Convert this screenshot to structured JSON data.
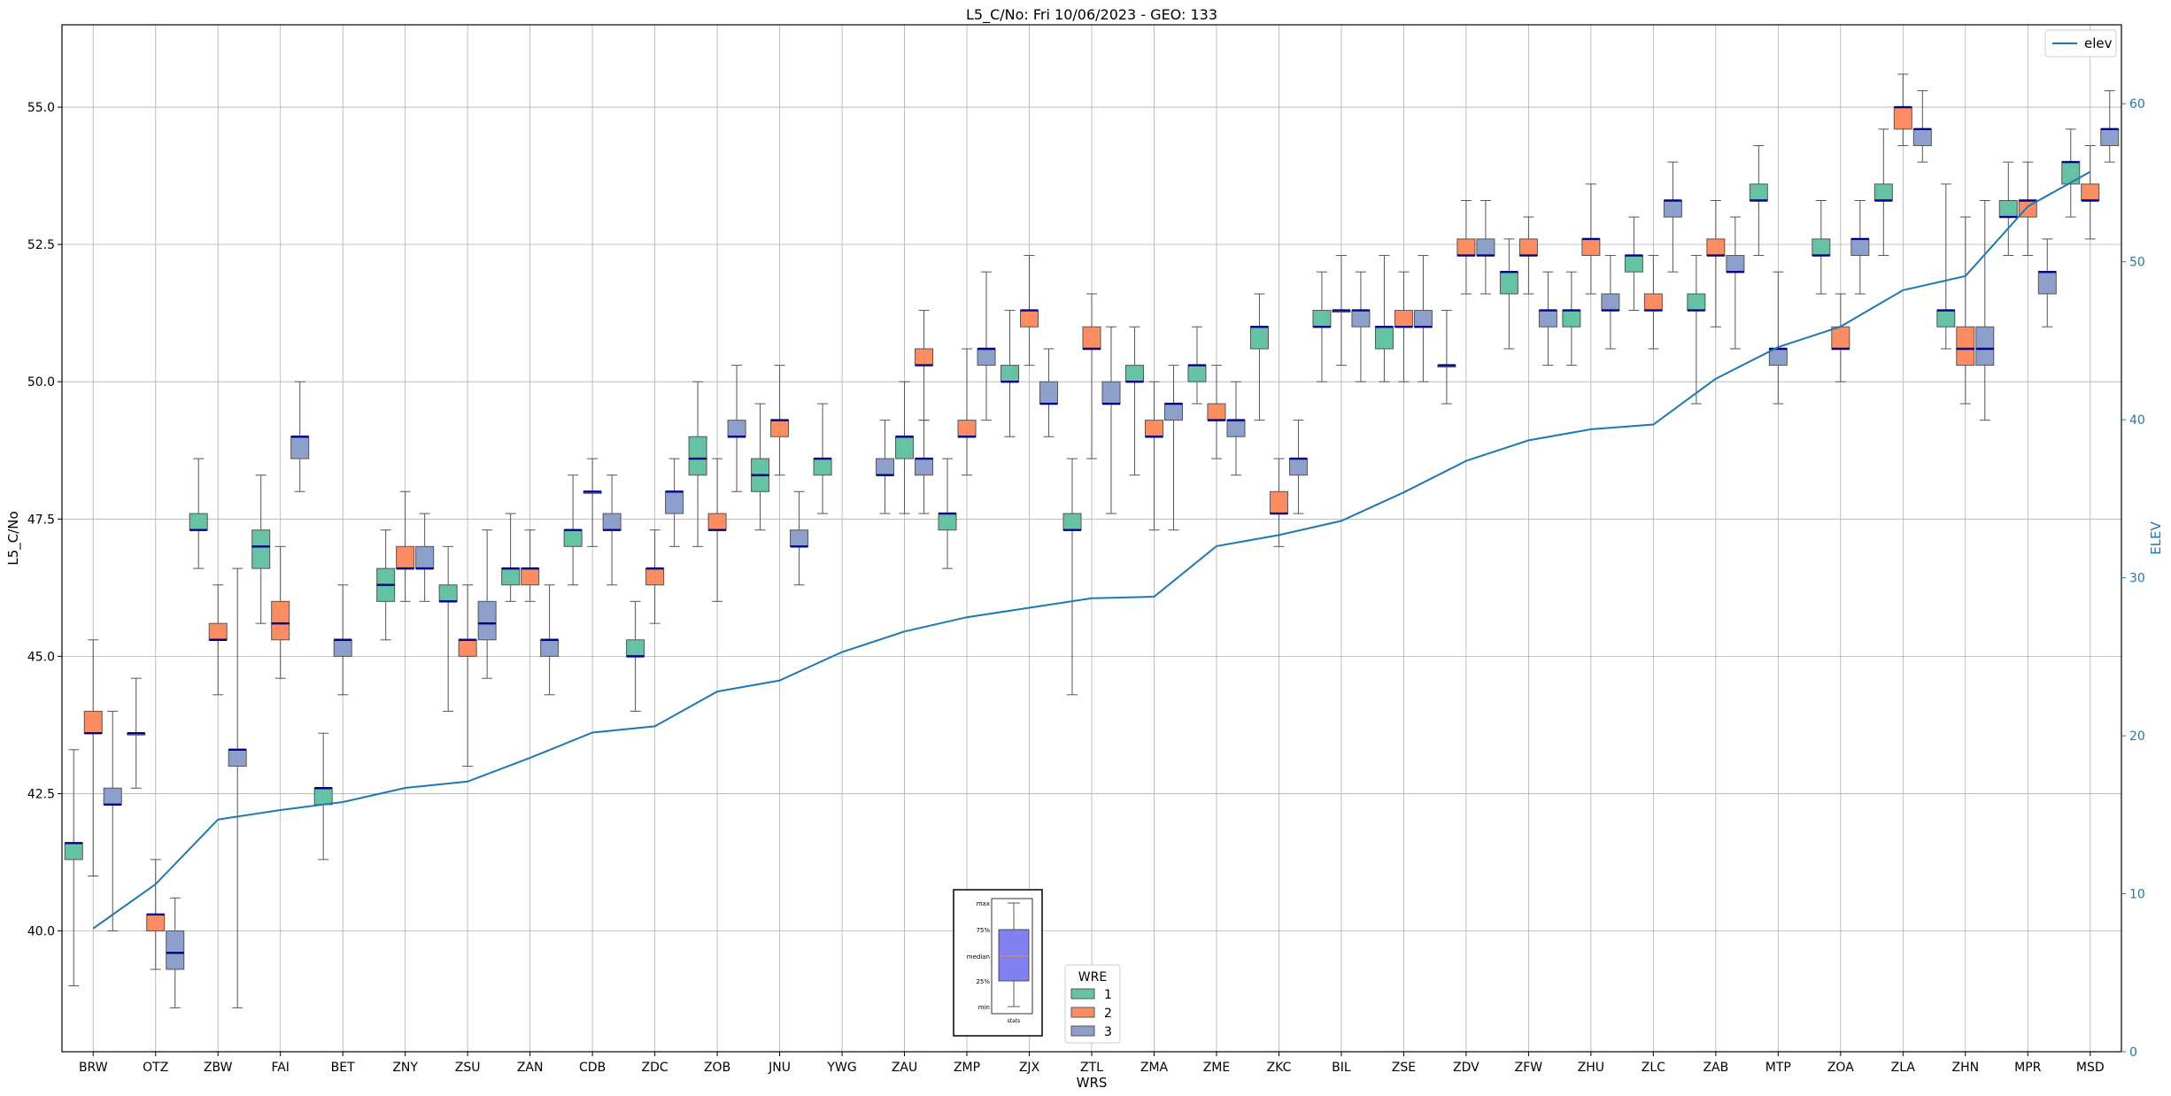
{
  "chart_data": {
    "type": "box",
    "title": "L5_C/No: Fri 10/06/2023 - GEO: 133",
    "xlabel": "WRS",
    "ylabel": "L5_C/No",
    "y2label": "ELEV",
    "ylim": [
      37.8,
      56.5
    ],
    "y2lim": [
      0,
      65
    ],
    "yticks": [
      "40.0",
      "42.5",
      "45.0",
      "47.5",
      "50.0",
      "52.5",
      "55.0"
    ],
    "y2ticks": [
      "0",
      "10",
      "20",
      "30",
      "40",
      "50",
      "60"
    ],
    "grid": true,
    "categories": [
      "BRW",
      "OTZ",
      "ZBW",
      "FAI",
      "BET",
      "ZNY",
      "ZSU",
      "ZAN",
      "CDB",
      "ZDC",
      "ZOB",
      "JNU",
      "YWG",
      "ZAU",
      "ZMP",
      "ZJX",
      "ZTL",
      "ZMA",
      "ZME",
      "ZKC",
      "BIL",
      "ZSE",
      "ZDV",
      "ZFW",
      "ZHU",
      "ZLC",
      "ZAB",
      "MTP",
      "ZOA",
      "ZLA",
      "ZHN",
      "MPR",
      "MSD"
    ],
    "wre_legend": {
      "title": "WRE",
      "labels": [
        "1",
        "2",
        "3"
      ],
      "colors": [
        "#66c2a5",
        "#fc8d62",
        "#8da0cb"
      ]
    },
    "median_color": "#00008b",
    "elev_series": {
      "name": "elev",
      "color": "#1f77b4",
      "legend_position": "top-right",
      "values": [
        7.8,
        10.6,
        14.7,
        15.3,
        15.8,
        16.7,
        17.1,
        18.6,
        20.2,
        20.6,
        22.8,
        23.5,
        25.3,
        26.6,
        27.5,
        28.1,
        28.7,
        28.8,
        32.0,
        32.7,
        33.6,
        35.4,
        37.4,
        38.7,
        39.4,
        39.7,
        42.6,
        44.6,
        45.9,
        48.2,
        49.1,
        53.5,
        55.7
      ]
    },
    "boxes": [
      {
        "station": "BRW",
        "wre": 1,
        "min": 39.0,
        "q1": 41.3,
        "median": 41.6,
        "q3": 41.6,
        "max": 43.3
      },
      {
        "station": "BRW",
        "wre": 2,
        "min": 41.0,
        "q1": 43.6,
        "median": 43.6,
        "q3": 44.0,
        "max": 45.3
      },
      {
        "station": "BRW",
        "wre": 3,
        "min": 40.0,
        "q1": 42.3,
        "median": 42.3,
        "q3": 42.6,
        "max": 44.0
      },
      {
        "station": "OTZ",
        "wre": 1,
        "min": 42.6,
        "q1": 43.6,
        "median": 43.6,
        "q3": 43.6,
        "max": 44.6
      },
      {
        "station": "OTZ",
        "wre": 2,
        "min": 39.3,
        "q1": 40.0,
        "median": 40.3,
        "q3": 40.3,
        "max": 41.3
      },
      {
        "station": "OTZ",
        "wre": 3,
        "min": 38.6,
        "q1": 39.3,
        "median": 39.6,
        "q3": 40.0,
        "max": 40.6
      },
      {
        "station": "ZBW",
        "wre": 1,
        "min": 46.6,
        "q1": 47.3,
        "median": 47.3,
        "q3": 47.6,
        "max": 48.6
      },
      {
        "station": "ZBW",
        "wre": 2,
        "min": 44.3,
        "q1": 45.3,
        "median": 45.3,
        "q3": 45.6,
        "max": 46.3
      },
      {
        "station": "ZBW",
        "wre": 3,
        "min": 38.6,
        "q1": 43.0,
        "median": 43.3,
        "q3": 43.3,
        "max": 46.6
      },
      {
        "station": "FAI",
        "wre": 1,
        "min": 45.6,
        "q1": 46.6,
        "median": 47.0,
        "q3": 47.3,
        "max": 48.3
      },
      {
        "station": "FAI",
        "wre": 2,
        "min": 44.6,
        "q1": 45.3,
        "median": 45.6,
        "q3": 46.0,
        "max": 47.0
      },
      {
        "station": "FAI",
        "wre": 3,
        "min": 48.0,
        "q1": 48.6,
        "median": 49.0,
        "q3": 49.0,
        "max": 50.0
      },
      {
        "station": "BET",
        "wre": 1,
        "min": 41.3,
        "q1": 42.3,
        "median": 42.6,
        "q3": 42.6,
        "max": 43.6
      },
      {
        "station": "BET",
        "wre": 3,
        "min": 44.3,
        "q1": 45.0,
        "median": 45.3,
        "q3": 45.3,
        "max": 46.3
      },
      {
        "station": "ZNY",
        "wre": 1,
        "min": 45.3,
        "q1": 46.0,
        "median": 46.3,
        "q3": 46.6,
        "max": 47.3
      },
      {
        "station": "ZNY",
        "wre": 2,
        "min": 46.0,
        "q1": 46.6,
        "median": 46.6,
        "q3": 47.0,
        "max": 48.0
      },
      {
        "station": "ZNY",
        "wre": 3,
        "min": 46.0,
        "q1": 46.6,
        "median": 46.6,
        "q3": 47.0,
        "max": 47.6
      },
      {
        "station": "ZSU",
        "wre": 1,
        "min": 44.0,
        "q1": 46.0,
        "median": 46.0,
        "q3": 46.3,
        "max": 47.0
      },
      {
        "station": "ZSU",
        "wre": 2,
        "min": 43.0,
        "q1": 45.0,
        "median": 45.3,
        "q3": 45.3,
        "max": 46.3
      },
      {
        "station": "ZSU",
        "wre": 3,
        "min": 44.6,
        "q1": 45.3,
        "median": 45.6,
        "q3": 46.0,
        "max": 47.3
      },
      {
        "station": "ZAN",
        "wre": 1,
        "min": 46.0,
        "q1": 46.3,
        "median": 46.6,
        "q3": 46.6,
        "max": 47.6
      },
      {
        "station": "ZAN",
        "wre": 2,
        "min": 46.0,
        "q1": 46.3,
        "median": 46.6,
        "q3": 46.6,
        "max": 47.3
      },
      {
        "station": "ZAN",
        "wre": 3,
        "min": 44.3,
        "q1": 45.0,
        "median": 45.3,
        "q3": 45.3,
        "max": 46.3
      },
      {
        "station": "CDB",
        "wre": 1,
        "min": 46.3,
        "q1": 47.0,
        "median": 47.3,
        "q3": 47.3,
        "max": 48.3
      },
      {
        "station": "CDB",
        "wre": 3,
        "min": 47.0,
        "q1": 48.0,
        "median": 48.0,
        "q3": 48.0,
        "max": 48.6
      },
      {
        "station": "CDB",
        "wre": 3,
        "min": 46.3,
        "q1": 47.3,
        "median": 47.3,
        "q3": 47.6,
        "max": 48.3
      },
      {
        "station": "ZDC",
        "wre": 1,
        "min": 44.0,
        "q1": 45.0,
        "median": 45.0,
        "q3": 45.3,
        "max": 46.0
      },
      {
        "station": "ZDC",
        "wre": 2,
        "min": 45.6,
        "q1": 46.3,
        "median": 46.6,
        "q3": 46.6,
        "max": 47.3
      },
      {
        "station": "ZDC",
        "wre": 3,
        "min": 47.0,
        "q1": 47.6,
        "median": 48.0,
        "q3": 48.0,
        "max": 48.6
      },
      {
        "station": "ZOB",
        "wre": 1,
        "min": 47.0,
        "q1": 48.3,
        "median": 48.6,
        "q3": 49.0,
        "max": 50.0
      },
      {
        "station": "ZOB",
        "wre": 2,
        "min": 46.0,
        "q1": 47.3,
        "median": 47.3,
        "q3": 47.6,
        "max": 48.6
      },
      {
        "station": "ZOB",
        "wre": 3,
        "min": 48.0,
        "q1": 49.0,
        "median": 49.0,
        "q3": 49.3,
        "max": 50.3
      },
      {
        "station": "JNU",
        "wre": 1,
        "min": 47.3,
        "q1": 48.0,
        "median": 48.3,
        "q3": 48.6,
        "max": 49.6
      },
      {
        "station": "JNU",
        "wre": 2,
        "min": 48.3,
        "q1": 49.0,
        "median": 49.3,
        "q3": 49.3,
        "max": 50.3
      },
      {
        "station": "JNU",
        "wre": 3,
        "min": 46.3,
        "q1": 47.0,
        "median": 47.0,
        "q3": 47.3,
        "max": 48.0
      },
      {
        "station": "YWG",
        "wre": 1,
        "min": 47.6,
        "q1": 48.3,
        "median": 48.6,
        "q3": 48.6,
        "max": 49.6
      },
      {
        "station": "ZAU",
        "wre": 3,
        "min": 47.6,
        "q1": 48.3,
        "median": 48.3,
        "q3": 48.6,
        "max": 49.3
      },
      {
        "station": "ZAU",
        "wre": 1,
        "min": 47.6,
        "q1": 48.6,
        "median": 49.0,
        "q3": 49.0,
        "max": 50.0
      },
      {
        "station": "ZAU",
        "wre": 2,
        "min": 49.3,
        "q1": 50.3,
        "median": 50.3,
        "q3": 50.6,
        "max": 51.3
      },
      {
        "station": "ZAU",
        "wre": 3,
        "min": 47.6,
        "q1": 48.3,
        "median": 48.6,
        "q3": 48.6,
        "max": 49.3
      },
      {
        "station": "ZMP",
        "wre": 1,
        "min": 46.6,
        "q1": 47.3,
        "median": 47.6,
        "q3": 47.6,
        "max": 48.6
      },
      {
        "station": "ZMP",
        "wre": 2,
        "min": 48.3,
        "q1": 49.0,
        "median": 49.0,
        "q3": 49.3,
        "max": 50.6
      },
      {
        "station": "ZMP",
        "wre": 3,
        "min": 49.3,
        "q1": 50.3,
        "median": 50.6,
        "q3": 50.6,
        "max": 52.0
      },
      {
        "station": "ZJX",
        "wre": 1,
        "min": 49.0,
        "q1": 50.0,
        "median": 50.0,
        "q3": 50.3,
        "max": 51.3
      },
      {
        "station": "ZJX",
        "wre": 2,
        "min": 50.3,
        "q1": 51.0,
        "median": 51.3,
        "q3": 51.3,
        "max": 52.3
      },
      {
        "station": "ZJX",
        "wre": 3,
        "min": 49.0,
        "q1": 49.6,
        "median": 49.6,
        "q3": 50.0,
        "max": 50.6
      },
      {
        "station": "ZTL",
        "wre": 1,
        "min": 44.3,
        "q1": 47.3,
        "median": 47.3,
        "q3": 47.6,
        "max": 48.6
      },
      {
        "station": "ZTL",
        "wre": 2,
        "min": 48.6,
        "q1": 50.6,
        "median": 50.6,
        "q3": 51.0,
        "max": 51.6
      },
      {
        "station": "ZTL",
        "wre": 3,
        "min": 47.6,
        "q1": 49.6,
        "median": 49.6,
        "q3": 50.0,
        "max": 51.0
      },
      {
        "station": "ZMA",
        "wre": 1,
        "min": 48.3,
        "q1": 50.0,
        "median": 50.0,
        "q3": 50.3,
        "max": 51.0
      },
      {
        "station": "ZMA",
        "wre": 2,
        "min": 47.3,
        "q1": 49.0,
        "median": 49.0,
        "q3": 49.3,
        "max": 50.0
      },
      {
        "station": "ZMA",
        "wre": 3,
        "min": 47.3,
        "q1": 49.3,
        "median": 49.6,
        "q3": 49.6,
        "max": 50.3
      },
      {
        "station": "ZME",
        "wre": 1,
        "min": 49.6,
        "q1": 50.0,
        "median": 50.3,
        "q3": 50.3,
        "max": 51.0
      },
      {
        "station": "ZME",
        "wre": 2,
        "min": 48.6,
        "q1": 49.3,
        "median": 49.3,
        "q3": 49.6,
        "max": 50.3
      },
      {
        "station": "ZME",
        "wre": 3,
        "min": 48.3,
        "q1": 49.0,
        "median": 49.3,
        "q3": 49.3,
        "max": 50.0
      },
      {
        "station": "ZKC",
        "wre": 1,
        "min": 49.3,
        "q1": 50.6,
        "median": 51.0,
        "q3": 51.0,
        "max": 51.6
      },
      {
        "station": "ZKC",
        "wre": 2,
        "min": 47.0,
        "q1": 47.6,
        "median": 47.6,
        "q3": 48.0,
        "max": 48.6
      },
      {
        "station": "ZKC",
        "wre": 3,
        "min": 47.6,
        "q1": 48.3,
        "median": 48.6,
        "q3": 48.6,
        "max": 49.3
      },
      {
        "station": "BIL",
        "wre": 1,
        "min": 50.0,
        "q1": 51.0,
        "median": 51.0,
        "q3": 51.3,
        "max": 52.0
      },
      {
        "station": "BIL",
        "wre": 2,
        "min": 50.3,
        "q1": 51.3,
        "median": 51.3,
        "q3": 51.3,
        "max": 52.3
      },
      {
        "station": "BIL",
        "wre": 3,
        "min": 50.0,
        "q1": 51.0,
        "median": 51.3,
        "q3": 51.3,
        "max": 52.0
      },
      {
        "station": "ZSE",
        "wre": 1,
        "min": 50.0,
        "q1": 50.6,
        "median": 51.0,
        "q3": 51.0,
        "max": 52.3
      },
      {
        "station": "ZSE",
        "wre": 2,
        "min": 50.0,
        "q1": 51.0,
        "median": 51.0,
        "q3": 51.3,
        "max": 52.0
      },
      {
        "station": "ZSE",
        "wre": 3,
        "min": 50.0,
        "q1": 51.0,
        "median": 51.0,
        "q3": 51.3,
        "max": 52.3
      },
      {
        "station": "ZDV",
        "wre": 1,
        "min": 49.6,
        "q1": 50.3,
        "median": 50.3,
        "q3": 50.3,
        "max": 51.3
      },
      {
        "station": "ZDV",
        "wre": 2,
        "min": 51.6,
        "q1": 52.3,
        "median": 52.3,
        "q3": 52.6,
        "max": 53.3
      },
      {
        "station": "ZDV",
        "wre": 3,
        "min": 51.6,
        "q1": 52.3,
        "median": 52.3,
        "q3": 52.6,
        "max": 53.3
      },
      {
        "station": "ZFW",
        "wre": 1,
        "min": 50.6,
        "q1": 51.6,
        "median": 52.0,
        "q3": 52.0,
        "max": 52.6
      },
      {
        "station": "ZFW",
        "wre": 2,
        "min": 51.6,
        "q1": 52.3,
        "median": 52.3,
        "q3": 52.6,
        "max": 53.0
      },
      {
        "station": "ZFW",
        "wre": 3,
        "min": 50.3,
        "q1": 51.0,
        "median": 51.3,
        "q3": 51.3,
        "max": 52.0
      },
      {
        "station": "ZHU",
        "wre": 1,
        "min": 50.3,
        "q1": 51.0,
        "median": 51.3,
        "q3": 51.3,
        "max": 52.0
      },
      {
        "station": "ZHU",
        "wre": 2,
        "min": 51.6,
        "q1": 52.3,
        "median": 52.6,
        "q3": 52.6,
        "max": 53.6
      },
      {
        "station": "ZHU",
        "wre": 3,
        "min": 50.6,
        "q1": 51.3,
        "median": 51.3,
        "q3": 51.6,
        "max": 52.3
      },
      {
        "station": "ZLC",
        "wre": 1,
        "min": 51.3,
        "q1": 52.0,
        "median": 52.3,
        "q3": 52.3,
        "max": 53.0
      },
      {
        "station": "ZLC",
        "wre": 2,
        "min": 50.6,
        "q1": 51.3,
        "median": 51.3,
        "q3": 51.6,
        "max": 52.3
      },
      {
        "station": "ZLC",
        "wre": 3,
        "min": 52.0,
        "q1": 53.0,
        "median": 53.3,
        "q3": 53.3,
        "max": 54.0
      },
      {
        "station": "ZAB",
        "wre": 1,
        "min": 49.6,
        "q1": 51.3,
        "median": 51.3,
        "q3": 51.6,
        "max": 52.3
      },
      {
        "station": "ZAB",
        "wre": 2,
        "min": 51.0,
        "q1": 52.3,
        "median": 52.3,
        "q3": 52.6,
        "max": 53.3
      },
      {
        "station": "ZAB",
        "wre": 3,
        "min": 50.6,
        "q1": 52.0,
        "median": 52.0,
        "q3": 52.3,
        "max": 53.0
      },
      {
        "station": "MTP",
        "wre": 1,
        "min": 52.3,
        "q1": 53.3,
        "median": 53.3,
        "q3": 53.6,
        "max": 54.3
      },
      {
        "station": "MTP",
        "wre": 3,
        "min": 49.6,
        "q1": 50.3,
        "median": 50.6,
        "q3": 50.6,
        "max": 52.0
      },
      {
        "station": "ZOA",
        "wre": 1,
        "min": 51.6,
        "q1": 52.3,
        "median": 52.3,
        "q3": 52.6,
        "max": 53.3
      },
      {
        "station": "ZOA",
        "wre": 2,
        "min": 50.0,
        "q1": 50.6,
        "median": 50.6,
        "q3": 51.0,
        "max": 51.6
      },
      {
        "station": "ZOA",
        "wre": 3,
        "min": 51.6,
        "q1": 52.3,
        "median": 52.6,
        "q3": 52.6,
        "max": 53.3
      },
      {
        "station": "ZLA",
        "wre": 1,
        "min": 52.3,
        "q1": 53.3,
        "median": 53.3,
        "q3": 53.6,
        "max": 54.6
      },
      {
        "station": "ZLA",
        "wre": 2,
        "min": 54.3,
        "q1": 54.6,
        "median": 55.0,
        "q3": 55.0,
        "max": 55.6
      },
      {
        "station": "ZLA",
        "wre": 3,
        "min": 54.0,
        "q1": 54.3,
        "median": 54.6,
        "q3": 54.6,
        "max": 55.3
      },
      {
        "station": "ZHN",
        "wre": 1,
        "min": 50.6,
        "q1": 51.0,
        "median": 51.3,
        "q3": 51.3,
        "max": 53.6
      },
      {
        "station": "ZHN",
        "wre": 2,
        "min": 49.6,
        "q1": 50.3,
        "median": 50.6,
        "q3": 51.0,
        "max": 53.0
      },
      {
        "station": "ZHN",
        "wre": 3,
        "min": 49.3,
        "q1": 50.3,
        "median": 50.6,
        "q3": 51.0,
        "max": 53.3
      },
      {
        "station": "MPR",
        "wre": 1,
        "min": 52.3,
        "q1": 53.0,
        "median": 53.0,
        "q3": 53.3,
        "max": 54.0
      },
      {
        "station": "MPR",
        "wre": 2,
        "min": 52.3,
        "q1": 53.0,
        "median": 53.3,
        "q3": 53.3,
        "max": 54.0
      },
      {
        "station": "MPR",
        "wre": 3,
        "min": 51.0,
        "q1": 51.6,
        "median": 52.0,
        "q3": 52.0,
        "max": 52.6
      },
      {
        "station": "MSD",
        "wre": 1,
        "min": 53.0,
        "q1": 53.6,
        "median": 54.0,
        "q3": 54.0,
        "max": 54.6
      },
      {
        "station": "MSD",
        "wre": 2,
        "min": 52.6,
        "q1": 53.3,
        "median": 53.3,
        "q3": 53.6,
        "max": 54.3
      },
      {
        "station": "MSD",
        "wre": 3,
        "min": 54.0,
        "q1": 54.3,
        "median": 54.6,
        "q3": 54.6,
        "max": 55.3
      }
    ],
    "key_inset": {
      "labels": [
        "max",
        "75%",
        "median",
        "25%",
        "min"
      ],
      "caption": "stats"
    }
  }
}
